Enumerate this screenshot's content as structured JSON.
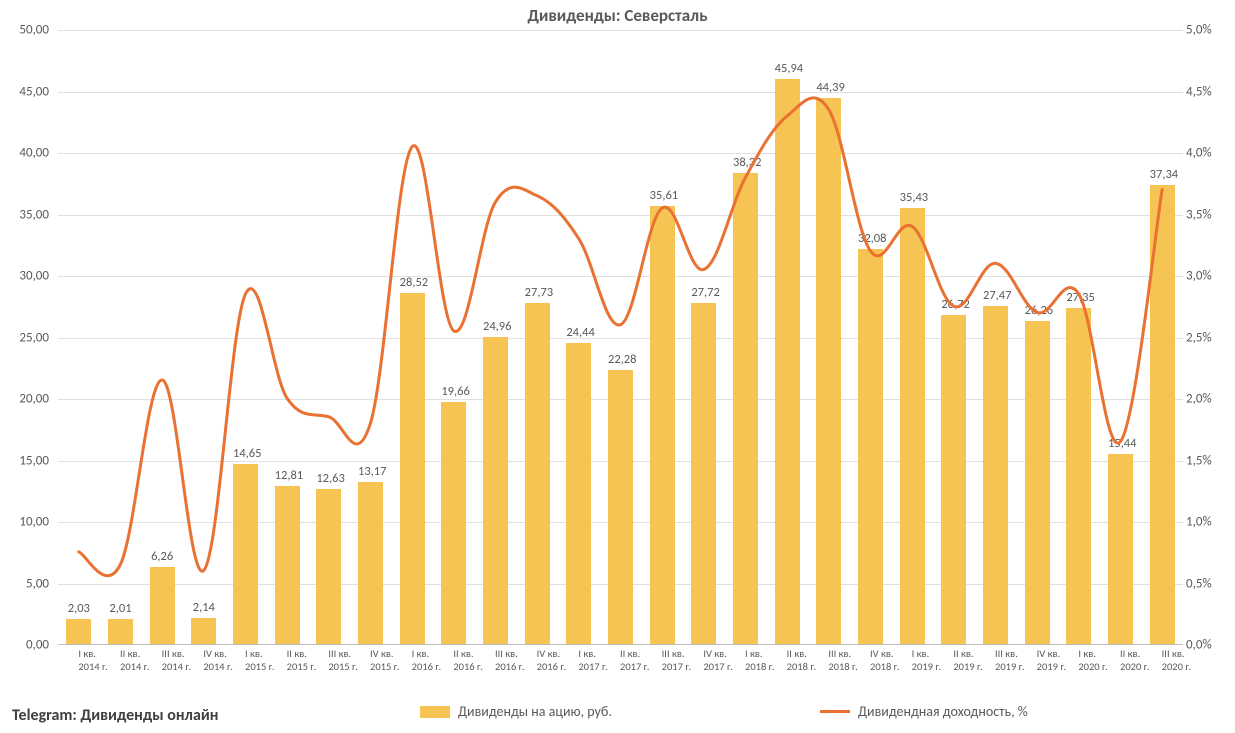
{
  "title": "Дивиденды: Северсталь",
  "title_fontsize": 17,
  "title_color": "#595959",
  "background_color": "#ffffff",
  "grid_color": "#e0e0e0",
  "axis_font_color": "#595959",
  "bar_color": "#f6c452",
  "line_color": "#e97132",
  "line_width": 3,
  "bar_width_ratio": 0.6,
  "left_axis": {
    "min": 0,
    "max": 50,
    "step": 5,
    "format": "comma2"
  },
  "right_axis": {
    "min": 0,
    "max": 5,
    "step": 0.5,
    "format": "percent1"
  },
  "categories": [
    {
      "line1": "I кв.",
      "line2": "2014 г."
    },
    {
      "line1": "II кв.",
      "line2": "2014 г."
    },
    {
      "line1": "III кв.",
      "line2": "2014 г."
    },
    {
      "line1": "IV кв.",
      "line2": "2014 г."
    },
    {
      "line1": "I кв.",
      "line2": "2015 г."
    },
    {
      "line1": "II кв.",
      "line2": "2015 г."
    },
    {
      "line1": "III кв.",
      "line2": "2015 г."
    },
    {
      "line1": "IV кв.",
      "line2": "2015 г."
    },
    {
      "line1": "I кв.",
      "line2": "2016 г."
    },
    {
      "line1": "II кв.",
      "line2": "2016 г."
    },
    {
      "line1": "III кв.",
      "line2": "2016 г."
    },
    {
      "line1": "IV кв.",
      "line2": "2016 г."
    },
    {
      "line1": "I кв.",
      "line2": "2017 г."
    },
    {
      "line1": "II кв.",
      "line2": "2017 г."
    },
    {
      "line1": "III кв.",
      "line2": "2017 г."
    },
    {
      "line1": "IV кв.",
      "line2": "2017 г."
    },
    {
      "line1": "I кв.",
      "line2": "2018 г."
    },
    {
      "line1": "II кв.",
      "line2": "2018 г."
    },
    {
      "line1": "III кв.",
      "line2": "2018 г."
    },
    {
      "line1": "IV кв.",
      "line2": "2018 г."
    },
    {
      "line1": "I кв.",
      "line2": "2019 г."
    },
    {
      "line1": "II кв.",
      "line2": "2019 г."
    },
    {
      "line1": "III кв.",
      "line2": "2019 г."
    },
    {
      "line1": "IV кв.",
      "line2": "2019 г."
    },
    {
      "line1": "I кв.",
      "line2": "2020 г."
    },
    {
      "line1": "II кв.",
      "line2": "2020 г."
    },
    {
      "line1": "III кв.",
      "line2": "2020 г."
    }
  ],
  "bar_values": [
    2.03,
    2.01,
    6.26,
    2.14,
    14.65,
    12.81,
    12.63,
    13.17,
    28.52,
    19.66,
    24.96,
    27.73,
    24.44,
    22.28,
    35.61,
    27.72,
    38.32,
    45.94,
    44.39,
    32.08,
    35.43,
    26.72,
    27.47,
    26.26,
    27.35,
    15.44,
    37.34
  ],
  "bar_labels": [
    "2,03",
    "2,01",
    "6,26",
    "2,14",
    "14,65",
    "12,81",
    "12,63",
    "13,17",
    "28,52",
    "19,66",
    "24,96",
    "27,73",
    "24,44",
    "22,28",
    "35,61",
    "27,72",
    "38,32",
    "45,94",
    "44,39",
    "32,08",
    "35,43",
    "26,72",
    "27,47",
    "26,26",
    "27,35",
    "15,44",
    "37,34"
  ],
  "line_values": [
    0.75,
    0.65,
    2.15,
    0.6,
    2.85,
    2.0,
    1.85,
    1.8,
    4.05,
    2.55,
    3.6,
    3.65,
    3.3,
    2.6,
    3.55,
    3.05,
    3.8,
    4.3,
    4.35,
    3.2,
    3.4,
    2.75,
    3.1,
    2.7,
    2.85,
    1.65,
    3.7
  ],
  "legend": {
    "bar_label": "Дивиденды на ацию, руб.",
    "line_label": "Дивидендная доходность, %"
  },
  "footer": "Telegram: Дивиденды онлайн",
  "left_axis_ticks": [
    "0,00",
    "5,00",
    "10,00",
    "15,00",
    "20,00",
    "25,00",
    "30,00",
    "35,00",
    "40,00",
    "45,00",
    "50,00"
  ],
  "right_axis_ticks": [
    "0,0%",
    "0,5%",
    "1,0%",
    "1,5%",
    "2,0%",
    "2,5%",
    "3,0%",
    "3,5%",
    "4,0%",
    "4,5%",
    "5,0%"
  ]
}
